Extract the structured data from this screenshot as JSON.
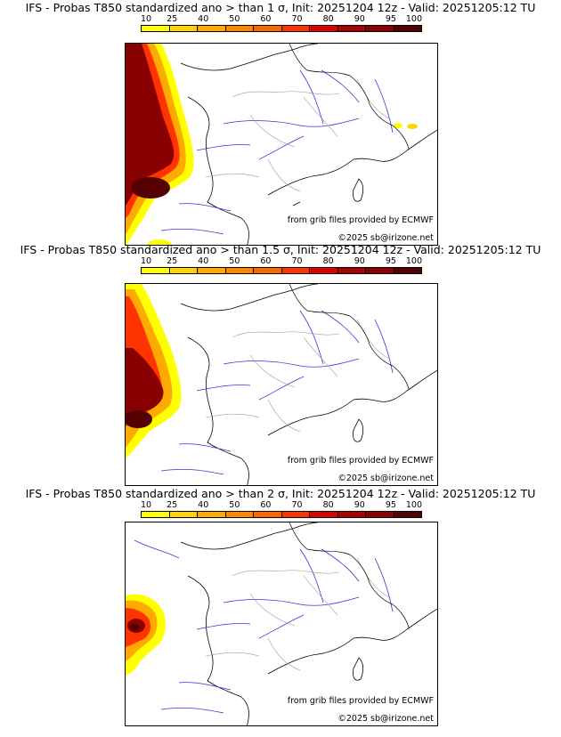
{
  "colorbar": {
    "labels": [
      "10",
      "25",
      "40",
      "50",
      "60",
      "70",
      "80",
      "90",
      "95",
      "100"
    ],
    "colors": [
      "#ffff00",
      "#ffd400",
      "#ffaa00",
      "#ff8800",
      "#ff6600",
      "#ff3300",
      "#dd0000",
      "#aa0000",
      "#880000",
      "#550000"
    ]
  },
  "credits": {
    "grib": "from grib files provided by ECMWF",
    "copyright": "©2025 sb@irizone.net"
  },
  "panels": [
    {
      "title": "IFS - Probas T850  standardized ano > than 1 σ, Init: 20251204 12z - Valid: 20251205:12 TU",
      "sigma": "1",
      "coverage_level": 0.95
    },
    {
      "title": "IFS - Probas T850  standardized ano > than 1.5 σ, Init: 20251204 12z - Valid: 20251205:12 TU",
      "sigma": "1.5",
      "coverage_level": 0.75
    },
    {
      "title": "IFS - Probas T850  standardized ano > than 2 σ, Init: 20251204 12z - Valid: 20251205:12 TU",
      "sigma": "2",
      "coverage_level": 0.3
    }
  ]
}
